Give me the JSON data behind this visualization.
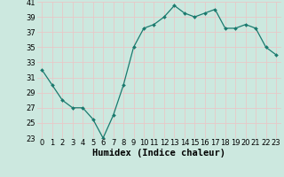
{
  "x": [
    0,
    1,
    2,
    3,
    4,
    5,
    6,
    7,
    8,
    9,
    10,
    11,
    12,
    13,
    14,
    15,
    16,
    17,
    18,
    19,
    20,
    21,
    22,
    23
  ],
  "y": [
    32,
    30,
    28,
    27,
    27,
    25.5,
    23,
    26,
    30,
    35,
    37.5,
    38,
    39,
    40.5,
    39.5,
    39,
    39.5,
    40,
    37.5,
    37.5,
    38,
    37.5,
    35,
    34
  ],
  "line_color": "#1a7a6e",
  "marker_color": "#1a7a6e",
  "bg_color": "#cce8df",
  "grid_color": "#e8c8c8",
  "xlabel": "Humidex (Indice chaleur)",
  "ylim": [
    23,
    41
  ],
  "xlim": [
    -0.5,
    23.5
  ],
  "yticks": [
    23,
    25,
    27,
    29,
    31,
    33,
    35,
    37,
    39,
    41
  ],
  "xticks": [
    0,
    1,
    2,
    3,
    4,
    5,
    6,
    7,
    8,
    9,
    10,
    11,
    12,
    13,
    14,
    15,
    16,
    17,
    18,
    19,
    20,
    21,
    22,
    23
  ],
  "xtick_labels": [
    "0",
    "1",
    "2",
    "3",
    "4",
    "5",
    "6",
    "7",
    "8",
    "9",
    "10",
    "11",
    "12",
    "13",
    "14",
    "15",
    "16",
    "17",
    "18",
    "19",
    "20",
    "21",
    "22",
    "23"
  ],
  "xlabel_fontsize": 7.5,
  "tick_fontsize": 6.0,
  "figsize": [
    3.2,
    2.0
  ],
  "dpi": 100
}
